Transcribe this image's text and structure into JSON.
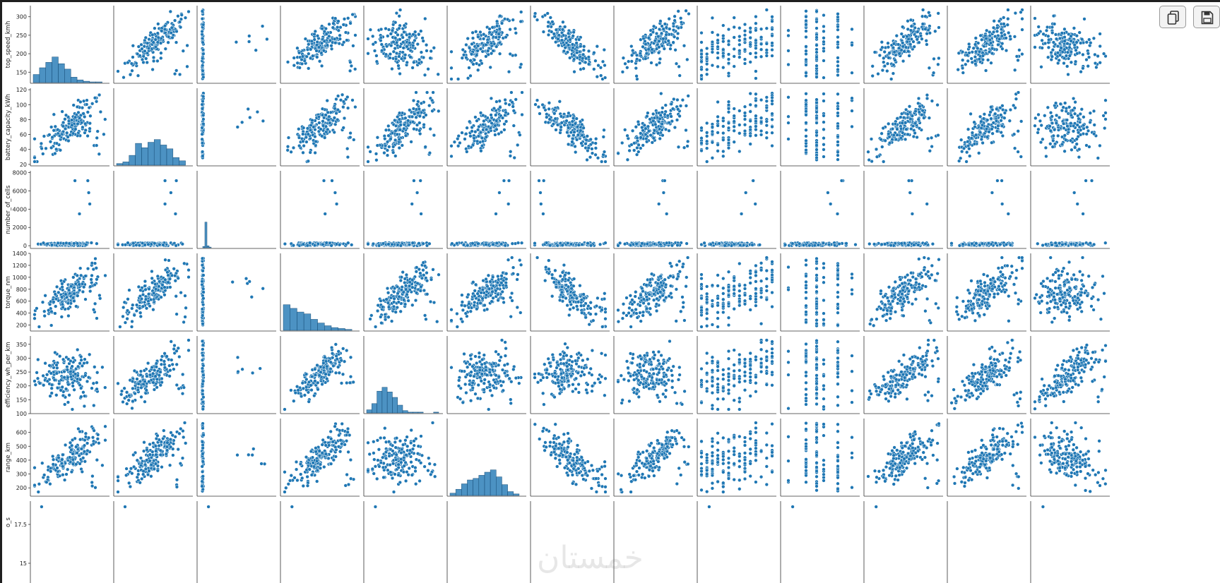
{
  "chart_data": {
    "type": "scatter",
    "kind": "pairplot",
    "color": "#1f77b4",
    "diagonal": "histogram",
    "variables_shown_as_rows": [
      "top_speed_kmh",
      "battery_capacity_kWh",
      "number_of_cells",
      "torque_nm",
      "efficiency_wh_per_km",
      "range_km",
      "..._s"
    ],
    "column_count": 13,
    "rows": [
      {
        "label": "top_speed_kmh",
        "ylim": [
          120,
          330
        ],
        "ticks": [
          150,
          200,
          250,
          300
        ]
      },
      {
        "label": "battery_capacity_kWh",
        "ylim": [
          18,
          122
        ],
        "ticks": [
          20,
          40,
          60,
          80,
          100,
          120
        ]
      },
      {
        "label": "number_of_cells",
        "ylim": [
          -300,
          8200
        ],
        "ticks": [
          0,
          2000,
          4000,
          6000,
          8000
        ]
      },
      {
        "label": "torque_nm",
        "ylim": [
          100,
          1400
        ],
        "ticks": [
          200,
          400,
          600,
          800,
          1000,
          1200,
          1400
        ]
      },
      {
        "label": "efficiency_wh_per_km",
        "ylim": [
          100,
          380
        ],
        "ticks": [
          100,
          150,
          200,
          250,
          300,
          350
        ]
      },
      {
        "label": "range_km",
        "ylim": [
          140,
          700
        ],
        "ticks": [
          200,
          300,
          400,
          500,
          600
        ]
      },
      {
        "label": "o_s",
        "ylim": [
          14,
          19
        ],
        "ticks": [
          15.0,
          17.5
        ]
      }
    ],
    "diag_hist": {
      "0": [
        12,
        22,
        30,
        38,
        28,
        20,
        8,
        4,
        2,
        1,
        1
      ],
      "1": [
        3,
        6,
        18,
        40,
        32,
        42,
        47,
        37,
        30,
        14,
        8
      ],
      "2": [
        2,
        40,
        3,
        1
      ],
      "3": [
        28,
        24,
        20,
        18,
        12,
        8,
        5,
        3,
        2,
        1
      ],
      "4": [
        4,
        12,
        28,
        33,
        27,
        20,
        10,
        3,
        1,
        1,
        1,
        0,
        0,
        1
      ],
      "5": [
        3,
        8,
        15,
        20,
        22,
        26,
        30,
        33,
        24,
        14,
        5,
        2
      ]
    }
  },
  "toolbar": {
    "copy_icon": "copy-icon",
    "save_icon": "save-icon"
  },
  "watermark": "خمستان"
}
